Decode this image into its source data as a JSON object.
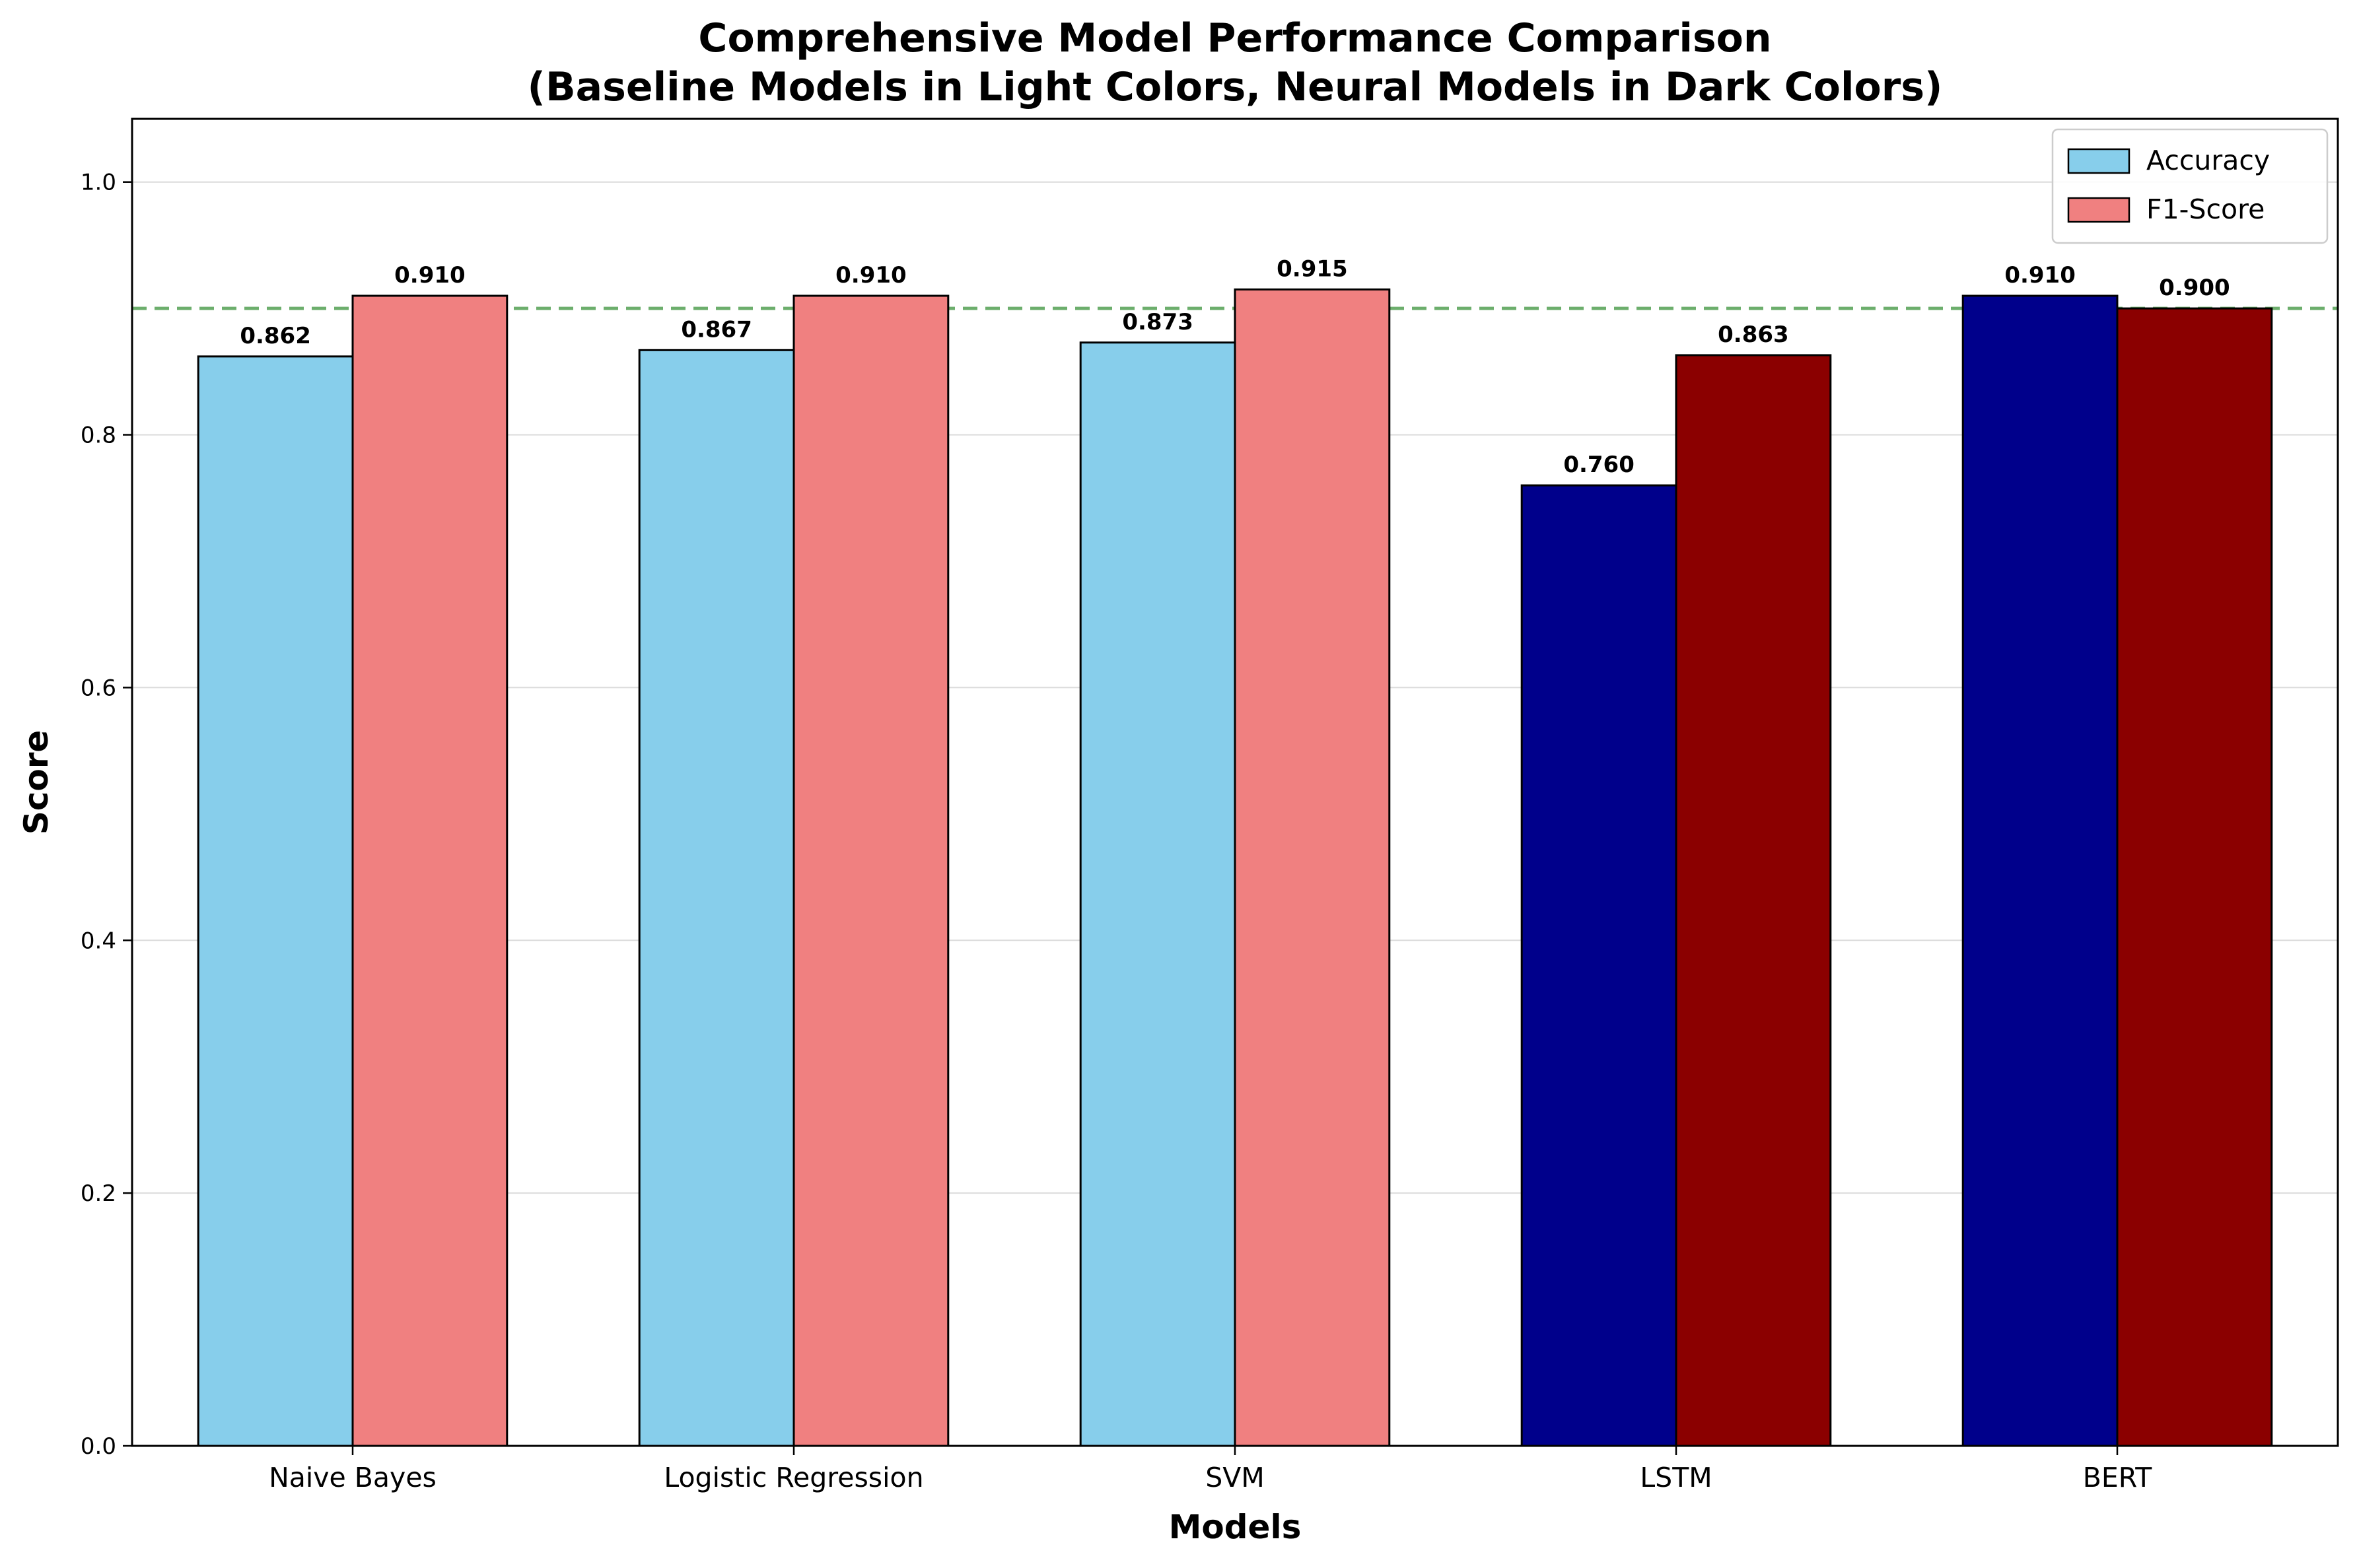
{
  "chart_data": {
    "type": "bar",
    "title": "Comprehensive Model Performance Comparison",
    "subtitle": "(Baseline Models in Light Colors, Neural Models in Dark Colors)",
    "xlabel": "Models",
    "ylabel": "Score",
    "ylim": [
      0,
      1.05
    ],
    "yticks": [
      "0.0",
      "0.2",
      "0.4",
      "0.6",
      "0.8",
      "1.0"
    ],
    "grid": "horizontal",
    "legend_position": "top-right",
    "categories": [
      "Naive Bayes",
      "Logistic Regression",
      "SVM",
      "LSTM",
      "BERT"
    ],
    "series": [
      {
        "name": "Accuracy",
        "values": [
          0.862,
          0.867,
          0.873,
          0.76,
          0.91
        ],
        "labels": [
          "0.862",
          "0.867",
          "0.873",
          "0.760",
          "0.910"
        ],
        "colors": [
          "#87ceeb",
          "#87ceeb",
          "#87ceeb",
          "#00008b",
          "#00008b"
        ]
      },
      {
        "name": "F1-Score",
        "values": [
          0.91,
          0.91,
          0.915,
          0.863,
          0.9
        ],
        "labels": [
          "0.910",
          "0.910",
          "0.915",
          "0.863",
          "0.900"
        ],
        "colors": [
          "#f08080",
          "#f08080",
          "#f08080",
          "#8b0000",
          "#8b0000"
        ]
      }
    ],
    "reference_line": {
      "value": 0.9,
      "color": "#2e8b2e",
      "style": "dashed"
    },
    "legend_colors": [
      "#87ceeb",
      "#f08080"
    ]
  }
}
